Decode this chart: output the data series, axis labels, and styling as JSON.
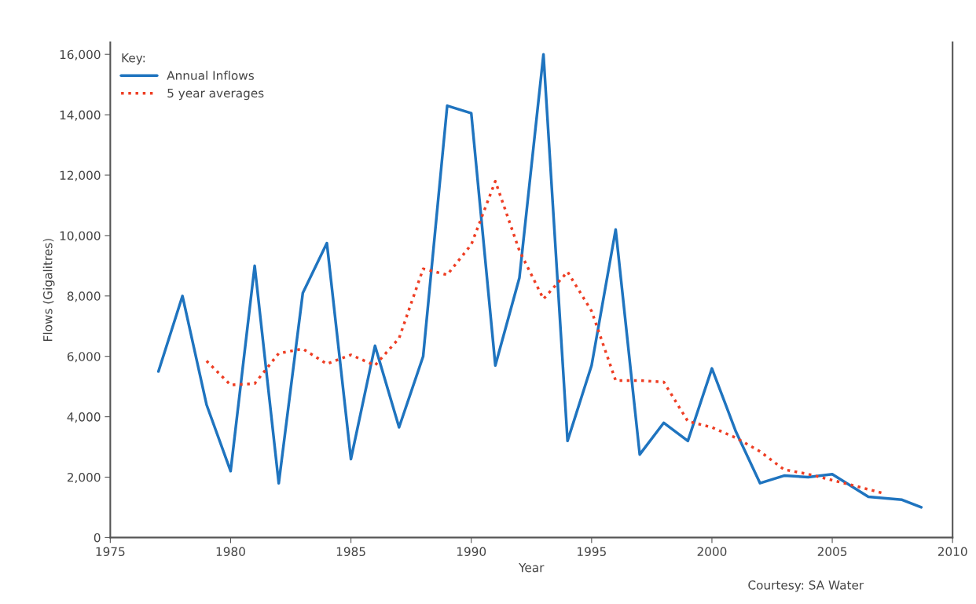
{
  "chart_data": {
    "type": "line",
    "xlabel": "Year",
    "ylabel": "Flows (Gigalitres)",
    "legend_title": "Key:",
    "legend": "top left",
    "grid": false,
    "annotations": [
      "Courtesy: SA Water"
    ],
    "xlim": [
      1975,
      2010
    ],
    "xticks": [
      1975,
      1980,
      1985,
      1990,
      1995,
      2000,
      2005,
      2010
    ],
    "ylim": [
      0,
      16400
    ],
    "yticks": [
      {
        "value": 0,
        "label": "0"
      },
      {
        "value": 2000,
        "label": "2,000"
      },
      {
        "value": 4000,
        "label": "4,000"
      },
      {
        "value": 6000,
        "label": "6,000"
      },
      {
        "value": 8000,
        "label": "8,000"
      },
      {
        "value": 10000,
        "label": "10,000"
      },
      {
        "value": 12000,
        "label": "12,000"
      },
      {
        "value": 14000,
        "label": "14,000"
      },
      {
        "value": 16000,
        "label": "16,000"
      }
    ],
    "series": [
      {
        "name": "Annual Inflows",
        "color": "#1f74bf",
        "line_style": "solid",
        "x": [
          1977,
          1978,
          1979,
          1980,
          1981,
          1982,
          1983,
          1984,
          1985,
          1986,
          1987,
          1988,
          1989,
          1990,
          1991,
          1992,
          1993,
          1994,
          1995,
          1996,
          1997,
          1998,
          1999,
          2000,
          2001,
          2002,
          2003,
          2004,
          2005,
          2006.5,
          2007.9,
          2008.7
        ],
        "values": [
          5500,
          8000,
          4400,
          2200,
          9000,
          1800,
          8100,
          9750,
          2600,
          6350,
          3650,
          6000,
          14300,
          14050,
          5700,
          8600,
          16000,
          3200,
          5700,
          10200,
          2750,
          3800,
          3200,
          5600,
          3500,
          1800,
          2050,
          2000,
          2100,
          1350,
          1250,
          1000
        ]
      },
      {
        "name": "5 year averages",
        "color": "#ee3e24",
        "line_style": "dotted",
        "x": [
          1979,
          1980,
          1981,
          1982,
          1983,
          1984,
          1985,
          1986,
          1987,
          1988,
          1989,
          1990,
          1991,
          1992,
          1993,
          1994,
          1995,
          1996,
          1997,
          1998,
          1999,
          2000,
          2001,
          2002,
          2003,
          2004,
          2005,
          2006,
          2007.2
        ],
        "values": [
          5850,
          5050,
          5100,
          6100,
          6250,
          5750,
          6050,
          5700,
          6600,
          8900,
          8700,
          9700,
          11800,
          9500,
          7900,
          8800,
          7500,
          5200,
          5200,
          5150,
          3850,
          3650,
          3300,
          2850,
          2250,
          2100,
          1900,
          1700,
          1450
        ]
      }
    ]
  }
}
